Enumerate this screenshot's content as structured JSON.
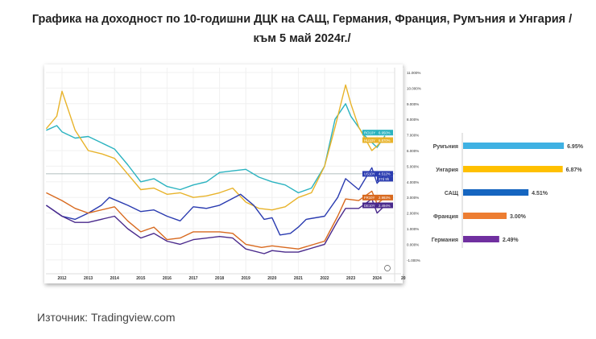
{
  "title": "Графика на доходност по 10-годишни ДЦК на САЩ, Германия, Франция, Румъния и Унгария /към 5 май 2024г./",
  "source": "Източник: Tradingview.com",
  "chart_data": [
    {
      "type": "line",
      "x_tick_labels": [
        "2012",
        "2013",
        "2014",
        "2015",
        "2016",
        "2017",
        "2018",
        "2019",
        "2020",
        "2021",
        "2022",
        "2023",
        "2024",
        "20"
      ],
      "y_tick_labels": [
        "11.000%",
        "10.000%",
        "9.000%",
        "8.000%",
        "7.000%",
        "6.000%",
        "5.000%",
        "4.000%",
        "3.000%",
        "2.000%",
        "1.000%",
        "0.000%",
        "-1.000%"
      ],
      "ylim": [
        -1,
        11
      ],
      "xlim": [
        2011.4,
        2025.0
      ],
      "countdown_label": "27d 9h",
      "series": [
        {
          "name": "RO10Y",
          "last_label": "6.950%",
          "color": "#2bb3c0",
          "x": [
            2011.4,
            2011.8,
            2012.0,
            2012.5,
            2013.0,
            2013.5,
            2014.0,
            2014.5,
            2015.0,
            2015.5,
            2016.0,
            2016.5,
            2017.0,
            2017.5,
            2018.0,
            2018.5,
            2019.0,
            2019.5,
            2020.0,
            2020.5,
            2021.0,
            2021.5,
            2022.0,
            2022.4,
            2022.8,
            2023.0,
            2023.5,
            2024.0,
            2024.3
          ],
          "y": [
            7.3,
            7.6,
            7.2,
            6.8,
            6.9,
            6.5,
            6.1,
            5.1,
            4.0,
            4.2,
            3.7,
            3.5,
            3.8,
            4.0,
            4.6,
            4.7,
            4.8,
            4.3,
            4.0,
            3.8,
            3.3,
            3.6,
            5.0,
            8.0,
            9.0,
            8.2,
            7.0,
            6.2,
            6.95
          ]
        },
        {
          "name": "HU10Y",
          "last_label": "6.870%",
          "color": "#e8b32a",
          "x": [
            2011.4,
            2011.8,
            2012.0,
            2012.5,
            2013.0,
            2013.5,
            2014.0,
            2014.5,
            2015.0,
            2015.5,
            2016.0,
            2016.5,
            2017.0,
            2017.5,
            2018.0,
            2018.5,
            2019.0,
            2019.5,
            2020.0,
            2020.5,
            2021.0,
            2021.5,
            2022.0,
            2022.4,
            2022.8,
            2023.0,
            2023.3,
            2023.8,
            2024.0,
            2024.3
          ],
          "y": [
            7.4,
            8.2,
            9.8,
            7.3,
            6.0,
            5.8,
            5.5,
            4.5,
            3.5,
            3.6,
            3.2,
            3.3,
            3.0,
            3.1,
            3.3,
            3.6,
            2.7,
            2.3,
            2.2,
            2.4,
            3.0,
            3.3,
            5.0,
            7.5,
            10.2,
            9.0,
            7.5,
            6.0,
            6.3,
            6.87
          ]
        },
        {
          "name": "US10Y",
          "last_label": "4.512%",
          "color": "#2a3bb0",
          "x": [
            2011.4,
            2012.0,
            2012.5,
            2013.0,
            2013.5,
            2013.8,
            2014.5,
            2015.0,
            2015.5,
            2016.0,
            2016.5,
            2017.0,
            2017.5,
            2018.0,
            2018.8,
            2019.3,
            2019.7,
            2020.0,
            2020.3,
            2020.7,
            2021.0,
            2021.3,
            2022.0,
            2022.5,
            2022.8,
            2023.3,
            2023.8,
            2024.0,
            2024.3
          ],
          "y": [
            2.5,
            1.8,
            1.6,
            2.0,
            2.5,
            3.0,
            2.5,
            2.1,
            2.2,
            1.8,
            1.5,
            2.4,
            2.3,
            2.5,
            3.2,
            2.5,
            1.6,
            1.7,
            0.6,
            0.7,
            1.1,
            1.6,
            1.8,
            3.0,
            4.2,
            3.5,
            4.9,
            3.9,
            4.51
          ]
        },
        {
          "name": "FR10Y",
          "last_label": "2.993%",
          "color": "#d8691e",
          "x": [
            2011.4,
            2012.0,
            2012.5,
            2013.0,
            2014.0,
            2014.5,
            2015.0,
            2015.5,
            2016.0,
            2016.5,
            2017.0,
            2018.0,
            2018.5,
            2019.0,
            2019.6,
            2020.0,
            2020.5,
            2021.0,
            2022.0,
            2022.5,
            2022.8,
            2023.3,
            2023.8,
            2024.0,
            2024.3
          ],
          "y": [
            3.3,
            2.8,
            2.3,
            2.0,
            2.4,
            1.5,
            0.8,
            1.1,
            0.3,
            0.4,
            0.8,
            0.8,
            0.7,
            0.0,
            -0.2,
            -0.1,
            -0.2,
            -0.3,
            0.2,
            1.8,
            2.9,
            2.8,
            3.4,
            2.6,
            2.99
          ]
        },
        {
          "name": "DE10Y",
          "last_label": "2.494%",
          "color": "#4a2a8c",
          "x": [
            2011.4,
            2012.0,
            2012.5,
            2013.0,
            2014.0,
            2014.5,
            2015.0,
            2015.5,
            2016.0,
            2016.5,
            2017.0,
            2018.0,
            2018.5,
            2019.0,
            2019.7,
            2020.0,
            2020.5,
            2021.0,
            2022.0,
            2022.5,
            2022.8,
            2023.3,
            2023.8,
            2024.0,
            2024.3
          ],
          "y": [
            2.5,
            1.8,
            1.4,
            1.4,
            1.8,
            1.0,
            0.4,
            0.7,
            0.2,
            0.0,
            0.3,
            0.5,
            0.4,
            -0.3,
            -0.6,
            -0.4,
            -0.5,
            -0.5,
            0.0,
            1.5,
            2.3,
            2.3,
            2.9,
            2.0,
            2.49
          ]
        }
      ]
    },
    {
      "type": "bar",
      "orientation": "horizontal",
      "categories": [
        "Румъния",
        "Унгария",
        "САЩ",
        "Франция",
        "Германия"
      ],
      "values": [
        6.95,
        6.87,
        4.51,
        3.0,
        2.49
      ],
      "value_labels": [
        "6.95%",
        "6.87%",
        "4.51%",
        "3.00%",
        "2.49%"
      ],
      "colors": [
        "#3fb1e3",
        "#ffc000",
        "#1565c0",
        "#ed7d31",
        "#7030a0"
      ]
    }
  ]
}
